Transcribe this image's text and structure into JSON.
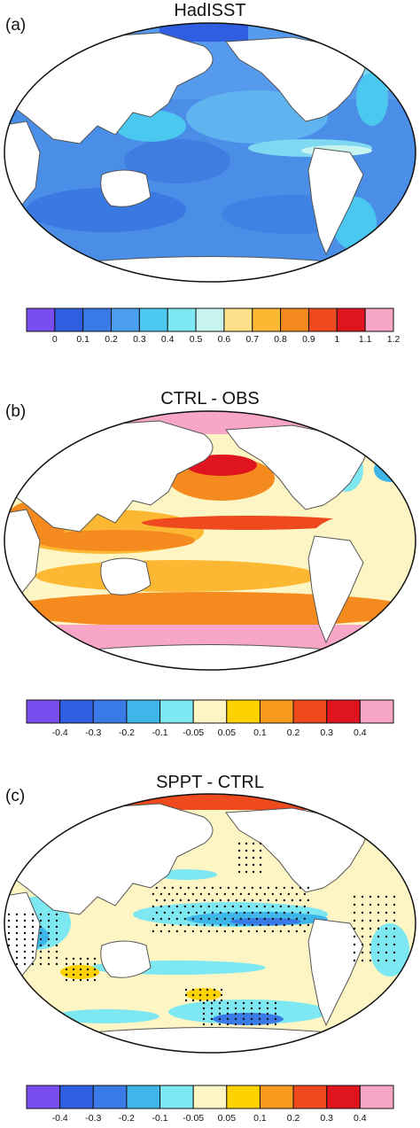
{
  "panels": [
    {
      "label": "(a)",
      "title": "HadISST",
      "colorbar": {
        "colors": [
          "#7a4df0",
          "#2f5fe0",
          "#3a7ae6",
          "#4c9ef0",
          "#4bc8f0",
          "#7ee8f2",
          "#c8f4f0",
          "#fde08a",
          "#fdb833",
          "#f58a1e",
          "#ee4a1e",
          "#e0141e",
          "#f7a6c8"
        ],
        "ticks": [
          "0",
          "0.1",
          "0.2",
          "0.3",
          "0.4",
          "0.5",
          "0.6",
          "0.7",
          "0.8",
          "0.9",
          "1",
          "1.1",
          "1.2"
        ]
      }
    },
    {
      "label": "(b)",
      "title": "CTRL - OBS",
      "colorbar": {
        "colors": [
          "#7a4df0",
          "#2f5fe0",
          "#3a7ae6",
          "#3fb6ea",
          "#7ee8f2",
          "#fdf5c4",
          "#fdd200",
          "#f79a1e",
          "#ee4a1e",
          "#e0141e",
          "#f7a6c8"
        ],
        "ticks": [
          "-0.4",
          "-0.3",
          "-0.2",
          "-0.1",
          "-0.05",
          "0.05",
          "0.1",
          "0.2",
          "0.3",
          "0.4"
        ]
      }
    },
    {
      "label": "(c)",
      "title": "SPPT - CTRL",
      "colorbar": {
        "colors": [
          "#7a4df0",
          "#2f5fe0",
          "#3a7ae6",
          "#3fb6ea",
          "#7ee8f2",
          "#fdf5c4",
          "#fdd200",
          "#f79a1e",
          "#ee4a1e",
          "#e0141e",
          "#f7a6c8"
        ],
        "ticks": [
          "-0.4",
          "-0.3",
          "-0.2",
          "-0.1",
          "-0.05",
          "0.05",
          "0.1",
          "0.2",
          "0.3",
          "0.4"
        ]
      }
    }
  ]
}
